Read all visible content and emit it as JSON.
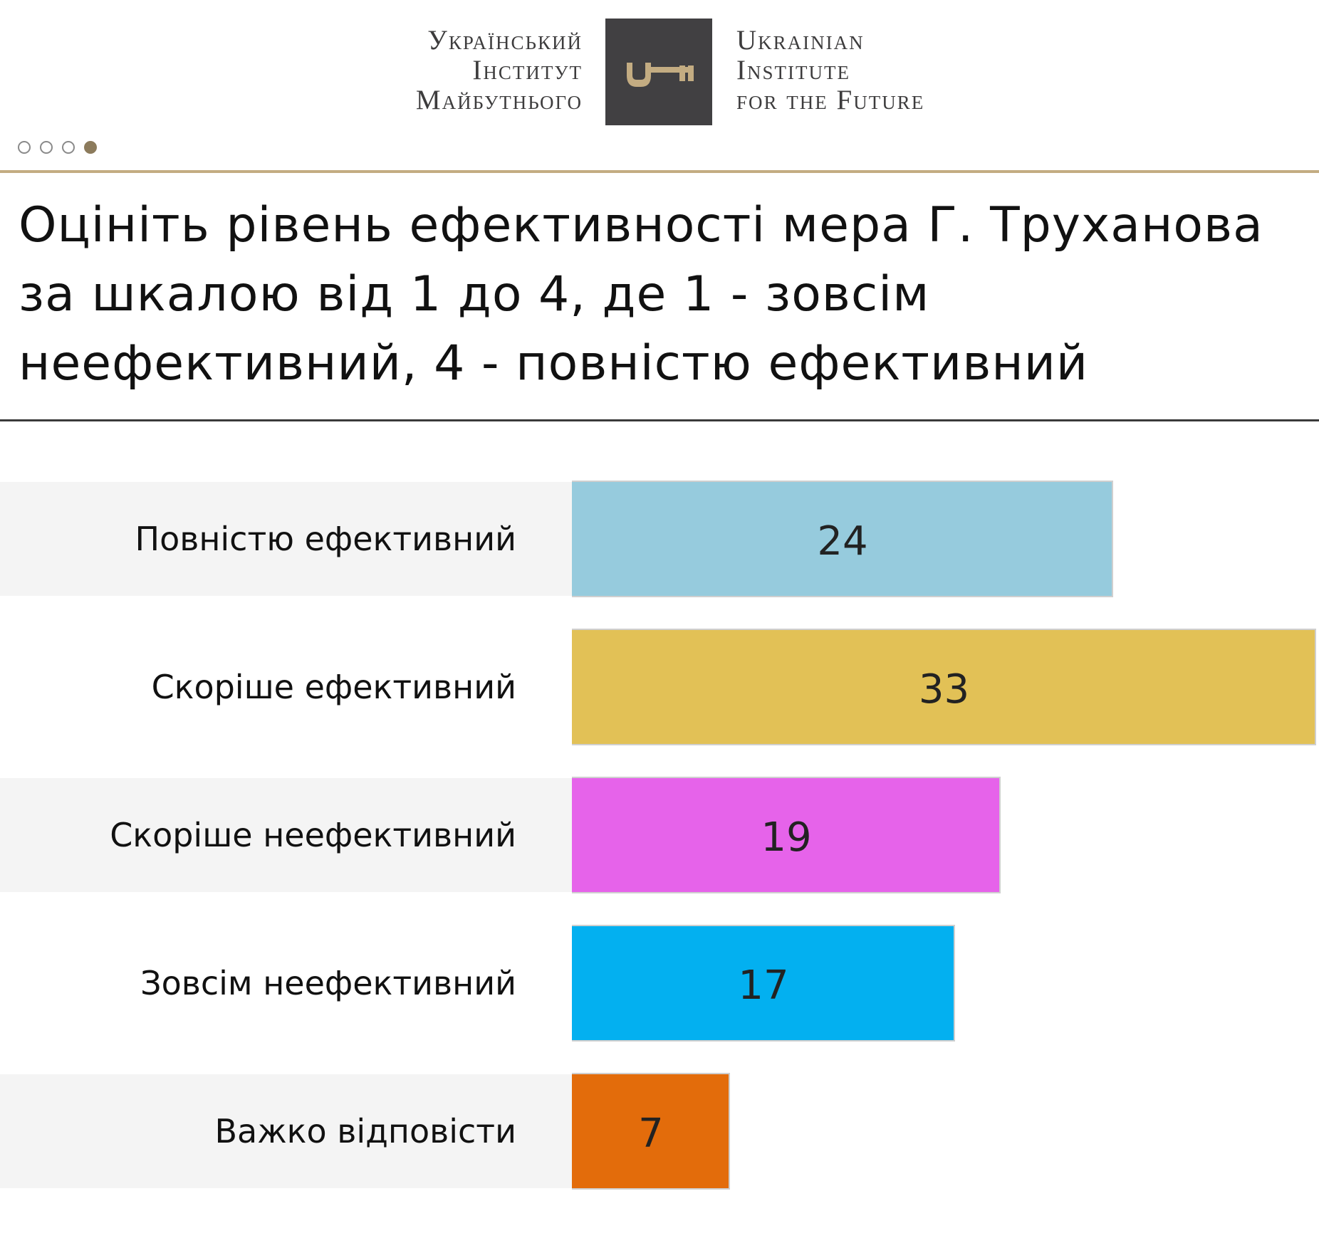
{
  "header": {
    "logo_ua_lines": [
      "Український",
      "Інститут",
      "Майбутнього"
    ],
    "logo_en_lines": [
      "Ukrainian",
      "Institute",
      "for the Future"
    ],
    "logo_icon": "key-icon",
    "logo_box_color": "#414042",
    "logo_key_color": "#c3ac82"
  },
  "pager": {
    "count": 4,
    "active_index": 3
  },
  "colors": {
    "accent_rule": "#c3ac82",
    "row_band": "#f4f4f4",
    "bar_outline": "#cfcfcf"
  },
  "chart_data": {
    "type": "bar",
    "orientation": "horizontal",
    "title": "Оцініть рівень ефективності мера Г. Труханова за шкалою від 1 до 4, де 1 - зовсім неефективний, 4 - повністю ефективний",
    "categories": [
      "Повністю ефективний",
      "Скоріше ефективний",
      "Скоріше неефективний",
      "Зовсім неефективний",
      "Важко відповісти"
    ],
    "values": [
      24,
      33,
      19,
      17,
      7
    ],
    "colors": [
      "#96cbdd",
      "#e2c156",
      "#e663ea",
      "#03b0f0",
      "#e36c0b"
    ],
    "xlim": [
      0,
      33
    ],
    "grid": false,
    "legend": "none",
    "data_labels": true
  }
}
